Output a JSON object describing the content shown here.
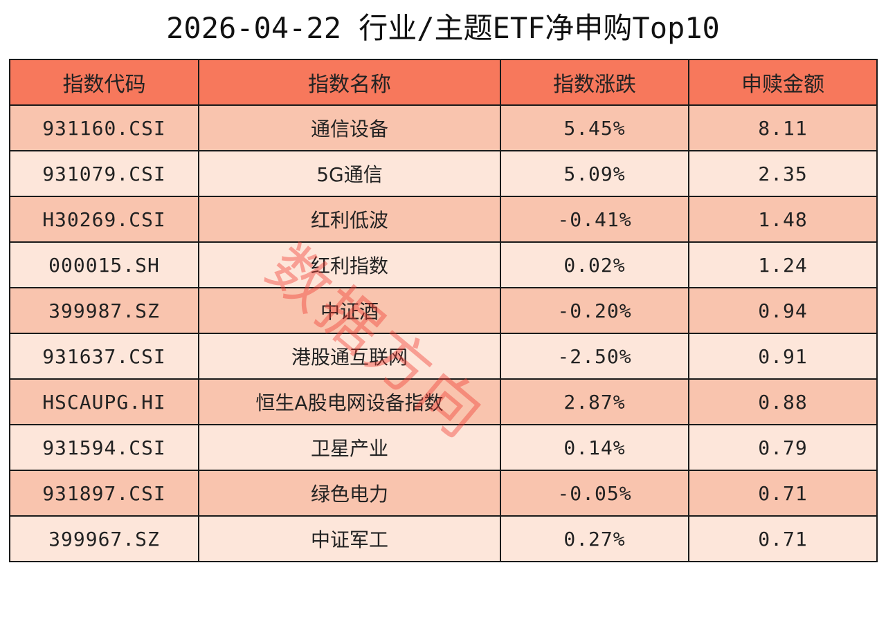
{
  "title": "2026-04-22 行业/主题ETF净申购Top10",
  "watermark": "数据方向",
  "chart_data": {
    "type": "table",
    "title": "2026-04-22 行业/主题ETF净申购Top10",
    "columns": [
      "指数代码",
      "指数名称",
      "指数涨跌",
      "申赎金额"
    ],
    "rows": [
      [
        "931160.CSI",
        "通信设备",
        "5.45%",
        "8.11"
      ],
      [
        "931079.CSI",
        "5G通信",
        "5.09%",
        "2.35"
      ],
      [
        "H30269.CSI",
        "红利低波",
        "-0.41%",
        "1.48"
      ],
      [
        "000015.SH",
        "红利指数",
        "0.02%",
        "1.24"
      ],
      [
        "399987.SZ",
        "中证酒",
        "-0.20%",
        "0.94"
      ],
      [
        "931637.CSI",
        "港股通互联网",
        "-2.50%",
        "0.91"
      ],
      [
        "HSCAUPG.HI",
        "恒生A股电网设备指数",
        "2.87%",
        "0.88"
      ],
      [
        "931594.CSI",
        "卫星产业",
        "0.14%",
        "0.79"
      ],
      [
        "931897.CSI",
        "绿色电力",
        "-0.05%",
        "0.71"
      ],
      [
        "399967.SZ",
        "中证军工",
        "0.27%",
        "0.71"
      ]
    ]
  },
  "colors": {
    "header": "#f7785c",
    "row_odd": "#f9c4ae",
    "row_even": "#fde6da",
    "watermark": "#f03c32"
  }
}
